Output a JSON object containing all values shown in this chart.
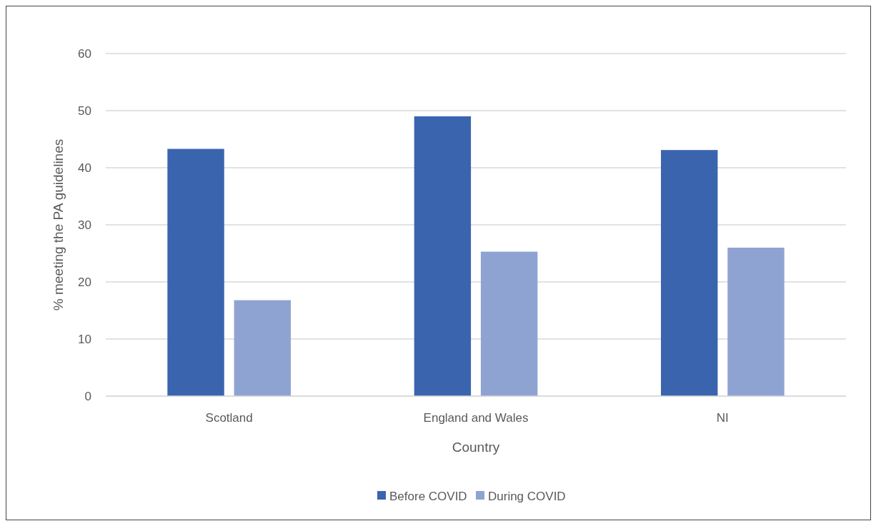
{
  "chart_data": {
    "type": "bar",
    "xlabel": "Country",
    "ylabel": "% meeting the PA guidelines",
    "categories": [
      "Scotland",
      "England and Wales",
      "NI"
    ],
    "series": [
      {
        "name": "Before COVID",
        "color": "#3a65ae",
        "values": [
          43.3,
          49,
          43.1
        ]
      },
      {
        "name": "During COVID",
        "color": "#8fa3d3",
        "values": [
          16.8,
          25.3,
          26
        ]
      }
    ],
    "ylim": [
      0,
      60
    ],
    "yticks": [
      0,
      10,
      20,
      30,
      40,
      50,
      60
    ],
    "grid": "y",
    "legend": "bottom"
  }
}
